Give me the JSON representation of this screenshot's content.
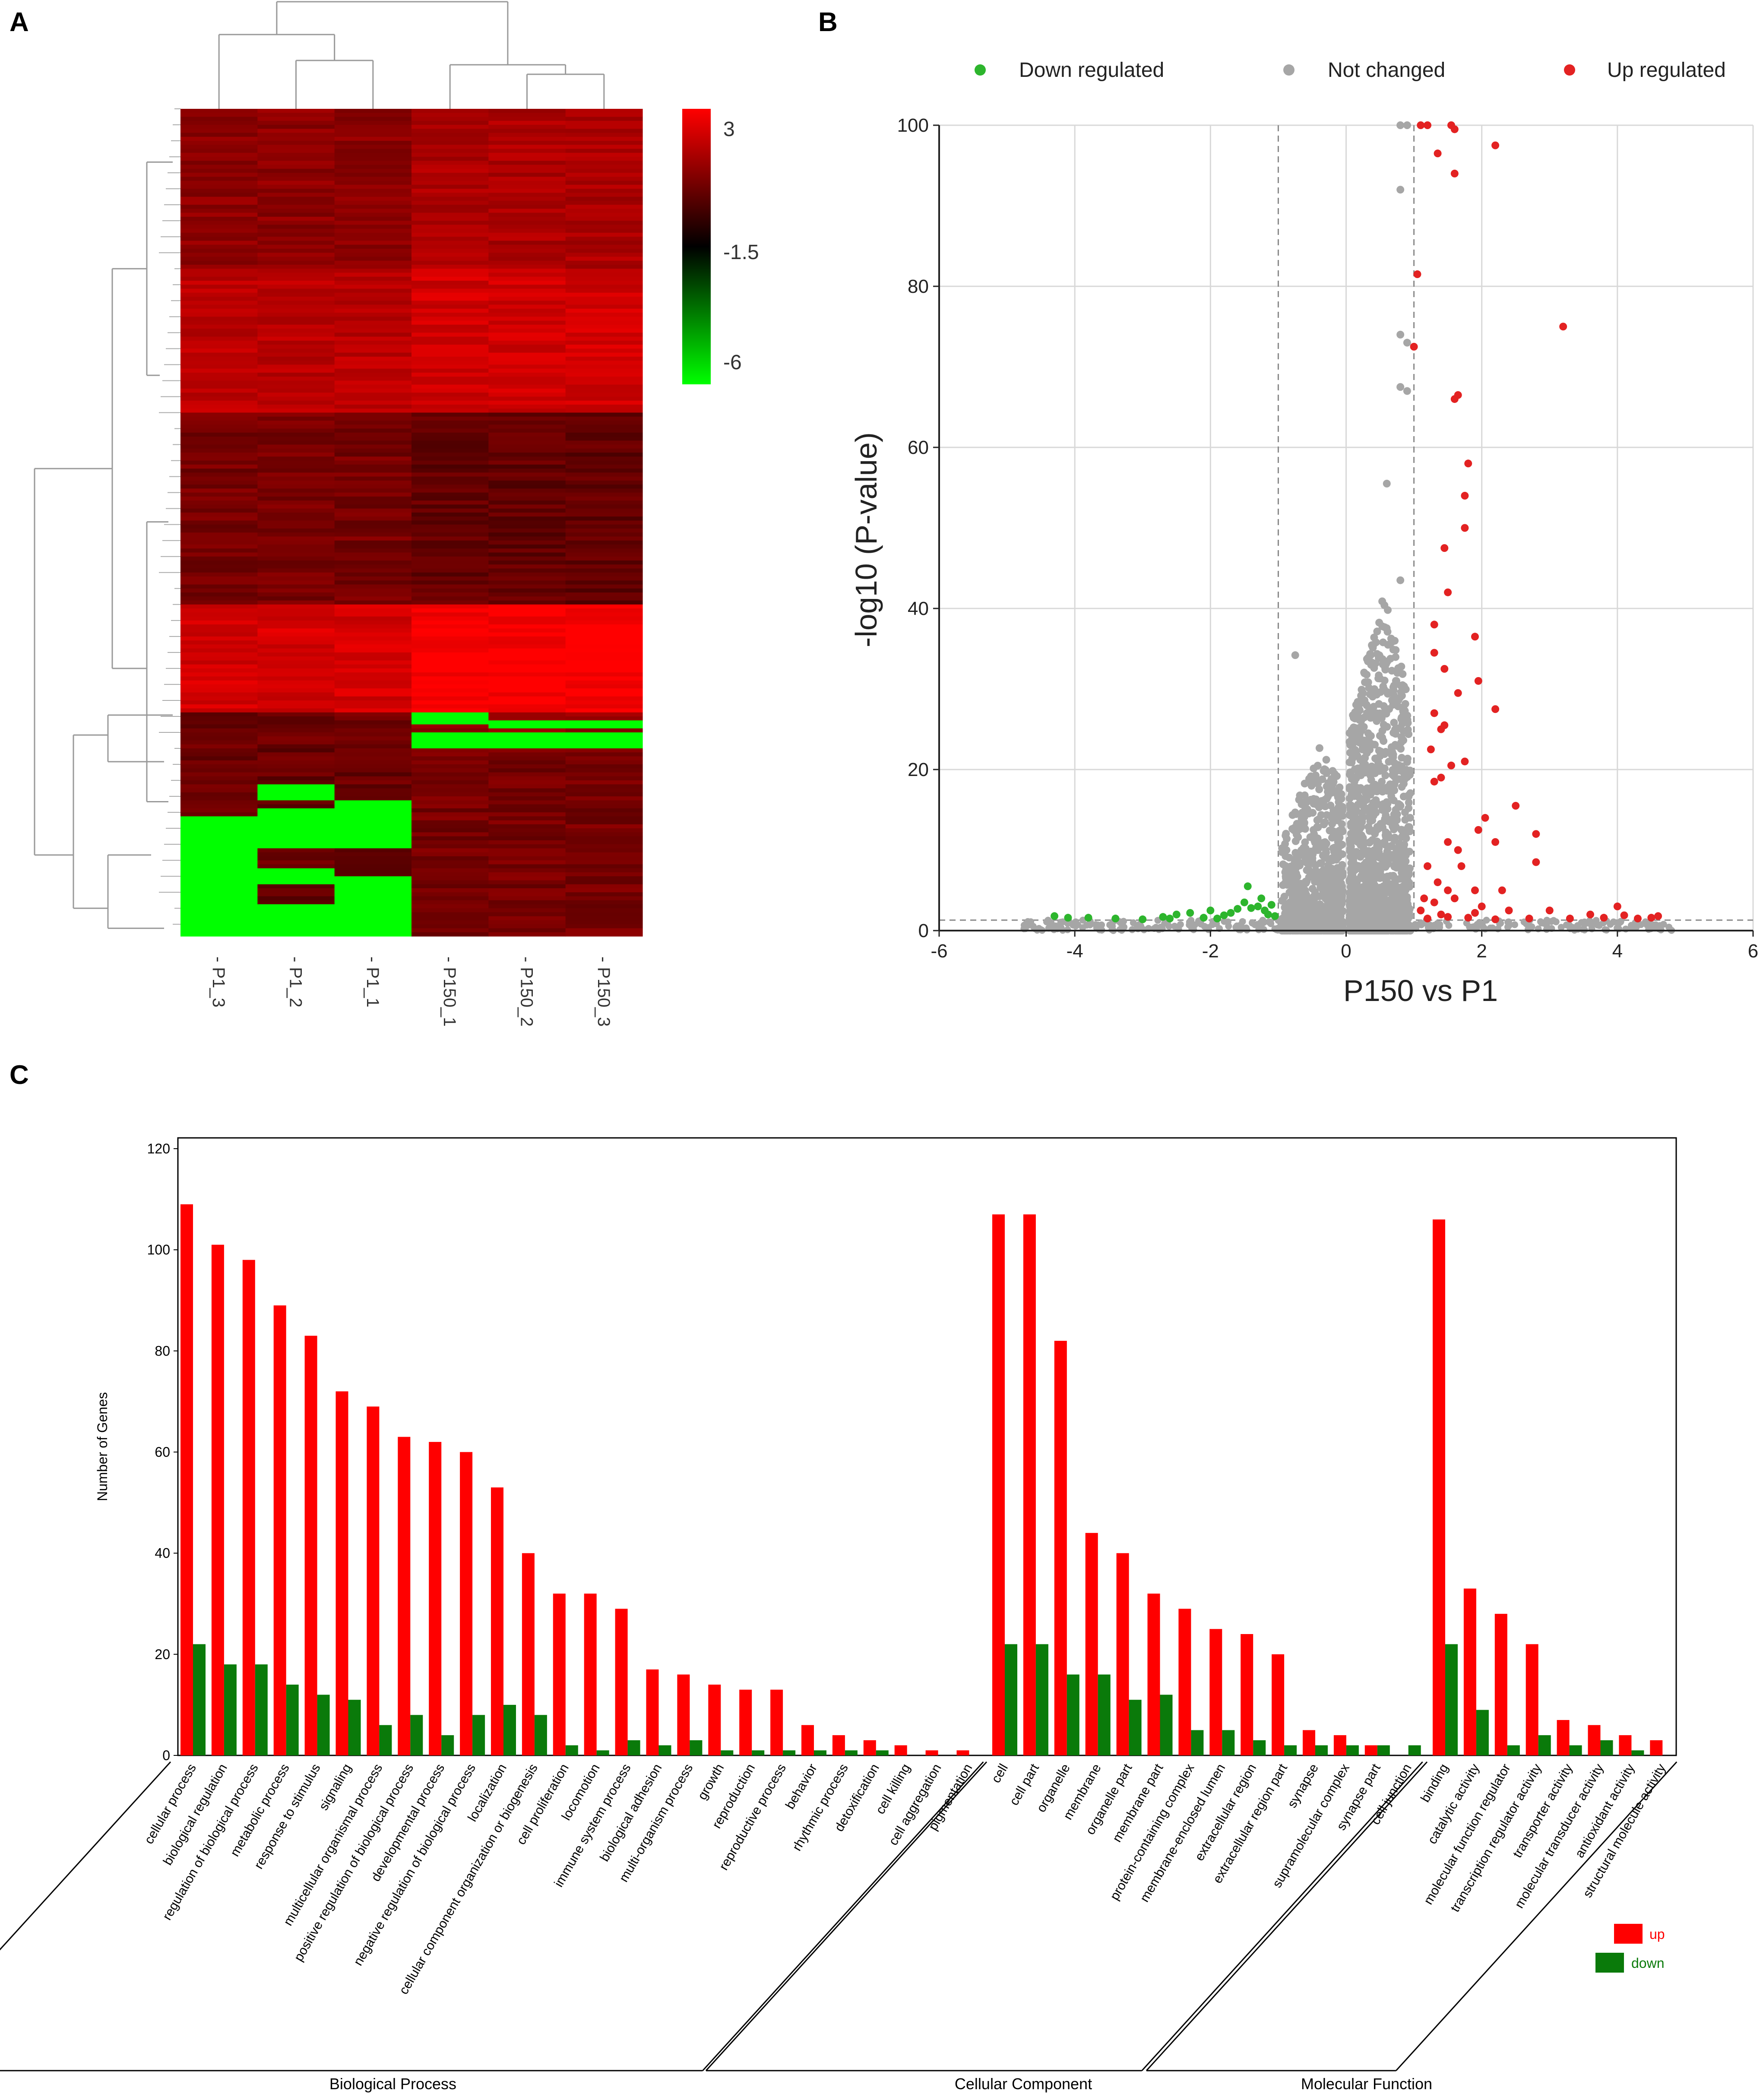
{
  "panels": {
    "a": {
      "letter": "A"
    },
    "b": {
      "letter": "B"
    },
    "c": {
      "letter": "C"
    }
  },
  "colors": {
    "red": "#ff0000",
    "green": "#00ff00",
    "dark": "#1a0000",
    "darkgreen": "#0a7a0a",
    "down": "#2db52d",
    "unchanged": "#a6a6a6",
    "up": "#e32222"
  },
  "chart_data": [
    {
      "id": "heatmap",
      "type": "heatmap",
      "title": "",
      "samples": [
        "P1_3",
        "P1_2",
        "P1_1",
        "P150_1",
        "P150_2",
        "P150_3"
      ],
      "colorbar": {
        "ticks": [
          "3",
          "-1.5",
          "-6"
        ],
        "min": -6,
        "max": 3
      },
      "approx_blocks": [
        {
          "rows": "1-120",
          "P1": 0.8,
          "P150": 1.5
        },
        {
          "rows": "120-227",
          "P1": 1.6,
          "P150": 2.0
        },
        {
          "rows": "227-370",
          "P1": 0.5,
          "P150": 0.2
        },
        {
          "rows": "370-453",
          "P1": 2.3,
          "P150": 2.8
        },
        {
          "rows": "453-620",
          "P1": "mixed, partially -6",
          "P150": 0.4
        }
      ]
    },
    {
      "id": "volcano",
      "type": "scatter",
      "title": "",
      "xlabel": "P150 vs P1",
      "ylabel": "-log10 (P-value)",
      "xlim": [
        -6,
        6
      ],
      "ylim": [
        0,
        100
      ],
      "xticks": [
        "-6",
        "-4",
        "-2",
        "0",
        "2",
        "4",
        "6"
      ],
      "yticks": [
        "0",
        "20",
        "40",
        "60",
        "80",
        "100"
      ],
      "thresholds": {
        "log2fc": [
          -1,
          1
        ],
        "neg_log10_p": 1.3
      },
      "legend": [
        {
          "label": "Down regulated",
          "key": "down"
        },
        {
          "label": "Not changed",
          "key": "unchanged"
        },
        {
          "label": "Up regulated",
          "key": "up"
        }
      ],
      "series": {
        "up": [
          [
            1.1,
            100
          ],
          [
            1.2,
            100
          ],
          [
            1.55,
            100
          ],
          [
            1.6,
            99.5
          ],
          [
            1.35,
            96.5
          ],
          [
            1.6,
            94
          ],
          [
            2.2,
            97.5
          ],
          [
            1.05,
            81.5
          ],
          [
            1.0,
            72.5
          ],
          [
            3.2,
            75
          ],
          [
            1.65,
            66.5
          ],
          [
            1.6,
            66
          ],
          [
            1.8,
            58
          ],
          [
            1.75,
            54
          ],
          [
            1.75,
            50
          ],
          [
            1.45,
            47.5
          ],
          [
            1.5,
            42
          ],
          [
            1.3,
            38
          ],
          [
            1.9,
            36.5
          ],
          [
            1.3,
            34.5
          ],
          [
            1.45,
            32.5
          ],
          [
            1.95,
            31
          ],
          [
            1.65,
            29.5
          ],
          [
            2.2,
            27.5
          ],
          [
            1.3,
            27
          ],
          [
            1.4,
            25
          ],
          [
            1.45,
            25.5
          ],
          [
            1.25,
            22.5
          ],
          [
            1.55,
            20.5
          ],
          [
            1.75,
            21
          ],
          [
            1.3,
            18.5
          ],
          [
            1.4,
            19
          ],
          [
            2.05,
            14
          ],
          [
            2.5,
            15.5
          ],
          [
            1.95,
            12.5
          ],
          [
            2.2,
            11
          ],
          [
            2.8,
            12
          ],
          [
            1.5,
            11
          ],
          [
            1.65,
            10
          ],
          [
            1.2,
            8
          ],
          [
            1.7,
            8
          ],
          [
            2.8,
            8.5
          ],
          [
            1.35,
            6
          ],
          [
            1.5,
            5
          ],
          [
            1.9,
            5
          ],
          [
            2.3,
            5
          ],
          [
            1.15,
            4
          ],
          [
            1.3,
            3.5
          ],
          [
            1.6,
            4
          ],
          [
            2.0,
            3
          ],
          [
            2.4,
            2.5
          ],
          [
            3.0,
            2.5
          ],
          [
            3.6,
            2
          ],
          [
            4.0,
            3
          ],
          [
            4.3,
            1.5
          ],
          [
            4.6,
            1.8
          ],
          [
            1.2,
            1.5
          ],
          [
            1.4,
            2
          ],
          [
            1.8,
            1.6
          ],
          [
            2.2,
            1.4
          ],
          [
            2.7,
            1.5
          ],
          [
            3.3,
            1.5
          ],
          [
            3.8,
            1.6
          ],
          [
            4.1,
            1.9
          ],
          [
            4.5,
            1.6
          ],
          [
            1.1,
            2.5
          ],
          [
            1.5,
            1.7
          ],
          [
            1.9,
            2.2
          ]
        ],
        "down": [
          [
            -4.3,
            1.8
          ],
          [
            -4.1,
            1.6
          ],
          [
            -3.8,
            1.6
          ],
          [
            -3.4,
            1.5
          ],
          [
            -3.0,
            1.4
          ],
          [
            -2.7,
            1.7
          ],
          [
            -2.5,
            2
          ],
          [
            -2.3,
            2.2
          ],
          [
            -2.1,
            1.6
          ],
          [
            -2.0,
            2.5
          ],
          [
            -1.8,
            1.9
          ],
          [
            -1.7,
            2.2
          ],
          [
            -1.6,
            2.7
          ],
          [
            -1.5,
            3.5
          ],
          [
            -1.45,
            5.5
          ],
          [
            -1.4,
            2.8
          ],
          [
            -1.3,
            3
          ],
          [
            -1.25,
            4
          ],
          [
            -1.2,
            2.5
          ],
          [
            -1.15,
            2
          ],
          [
            -1.1,
            3.2
          ],
          [
            -1.05,
            1.8
          ],
          [
            -1.9,
            1.5
          ],
          [
            -2.6,
            1.5
          ]
        ],
        "unchanged_outliers": [
          [
            0.8,
            100
          ],
          [
            0.9,
            100
          ],
          [
            0.8,
            92
          ],
          [
            0.8,
            74
          ],
          [
            0.9,
            73
          ],
          [
            0.8,
            67.5
          ],
          [
            0.9,
            67
          ],
          [
            0.6,
            55.5
          ],
          [
            -0.75,
            34.2
          ],
          [
            0.8,
            43.5
          ]
        ]
      }
    },
    {
      "id": "go_bar",
      "type": "bar",
      "title": "",
      "xlabel": "",
      "ylabel": "Number of Genes",
      "ylim": [
        0,
        120
      ],
      "yticks": [
        "0",
        "20",
        "40",
        "60",
        "80",
        "100",
        "120"
      ],
      "groups": [
        {
          "name": "Biological Process",
          "categories": [
            "cellular process",
            "biological regulation",
            "regulation of biological process",
            "metabolic process",
            "response to stimulus",
            "signaling",
            "multicellular organismal process",
            "positive regulation of biological process",
            "developmental process",
            "negative regulation of biological process",
            "localization",
            "cellular component organization or biogenesis",
            "cell proliferation",
            "locomotion",
            "immune system process",
            "biological adhesion",
            "multi-organism process",
            "growth",
            "reproduction",
            "reproductive process",
            "behavior",
            "rhythmic process",
            "detoxification",
            "cell killing",
            "cell aggregation",
            "pigmentation"
          ],
          "up": [
            109,
            101,
            98,
            89,
            83,
            72,
            69,
            63,
            62,
            60,
            53,
            40,
            32,
            32,
            29,
            17,
            16,
            14,
            13,
            13,
            6,
            4,
            3,
            2,
            1,
            1
          ],
          "down": [
            22,
            18,
            18,
            14,
            12,
            11,
            6,
            8,
            4,
            8,
            10,
            8,
            2,
            1,
            3,
            2,
            3,
            1,
            1,
            1,
            1,
            1,
            1,
            0,
            0,
            0
          ]
        },
        {
          "name": "Cellular Component",
          "categories": [
            "cell",
            "cell part",
            "organelle",
            "membrane",
            "organelle part",
            "membrane part",
            "protein-containing complex",
            "membrane-enclosed lumen",
            "extracellular region",
            "extracellular region part",
            "synapse",
            "supramolecular complex",
            "synapse part",
            "cell junction"
          ],
          "up": [
            107,
            107,
            82,
            44,
            40,
            32,
            29,
            25,
            24,
            20,
            5,
            4,
            2,
            0
          ],
          "down": [
            22,
            22,
            16,
            16,
            11,
            12,
            5,
            5,
            3,
            2,
            2,
            2,
            2,
            2
          ]
        },
        {
          "name": "Molecular Function",
          "categories": [
            "binding",
            "catalytic activity",
            "molecular function regulator",
            "transcription regulator activity",
            "transporter activity",
            "molecular transducer activity",
            "antioxidant activity",
            "structural molecule activity"
          ],
          "up": [
            106,
            33,
            28,
            22,
            7,
            6,
            4,
            3
          ],
          "down": [
            22,
            9,
            2,
            4,
            2,
            3,
            1,
            0
          ]
        }
      ],
      "legend": [
        {
          "label": "up",
          "key": "red"
        },
        {
          "label": "down",
          "key": "darkgreen"
        }
      ]
    }
  ]
}
